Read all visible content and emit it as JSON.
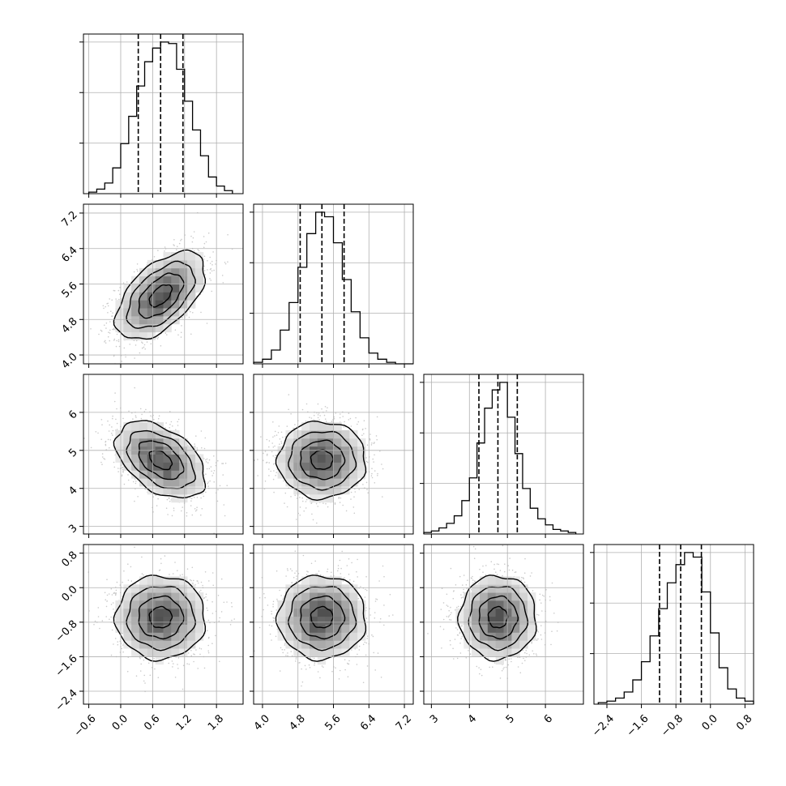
{
  "chart_data": {
    "type": "corner",
    "description_of_kind": "corner plot of 4 parameters: 1D histograms on diagonal with 16/50/84 percentile dashed lines, 2D density + contour panels below diagonal",
    "grid": true,
    "parameters": [
      {
        "index": 0,
        "range": [
          -0.7,
          2.3
        ],
        "ticks": [
          -0.6,
          0.0,
          0.6,
          1.2,
          1.8
        ],
        "tick_labels": [
          "−0.6",
          "0.0",
          "0.6",
          "1.2",
          "1.8"
        ],
        "quantiles": [
          0.33,
          0.75,
          1.17
        ],
        "hist": {
          "edges": [
            -0.6,
            -0.45,
            -0.3,
            -0.15,
            0.0,
            0.15,
            0.3,
            0.45,
            0.6,
            0.75,
            0.9,
            1.05,
            1.2,
            1.35,
            1.5,
            1.65,
            1.8,
            1.95,
            2.1
          ],
          "counts": [
            1,
            3,
            7,
            17,
            33,
            51,
            71,
            87,
            96,
            100,
            99,
            82,
            61,
            42,
            25,
            11,
            5,
            2
          ]
        }
      },
      {
        "index": 1,
        "range": [
          3.8,
          7.4
        ],
        "ticks": [
          4.0,
          4.8,
          5.6,
          6.4,
          7.2
        ],
        "tick_labels": [
          "4.0",
          "4.8",
          "5.6",
          "6.4",
          "7.2"
        ],
        "quantiles": [
          4.85,
          5.34,
          5.84
        ],
        "hist": {
          "edges": [
            3.8,
            4.0,
            4.2,
            4.4,
            4.6,
            4.8,
            5.0,
            5.2,
            5.4,
            5.6,
            5.8,
            6.0,
            6.2,
            6.4,
            6.6,
            6.8,
            7.0,
            7.2,
            7.4
          ],
          "counts": [
            1,
            3,
            9,
            22,
            40,
            63,
            85,
            99,
            96,
            79,
            55,
            34,
            17,
            7,
            3,
            1,
            0,
            0
          ]
        }
      },
      {
        "index": 2,
        "range": [
          2.8,
          7.0
        ],
        "ticks": [
          3,
          4,
          5,
          6
        ],
        "tick_labels": [
          "3",
          "4",
          "5",
          "6"
        ],
        "quantiles": [
          4.25,
          4.75,
          5.26
        ],
        "hist": {
          "edges": [
            2.8,
            3.0,
            3.2,
            3.4,
            3.6,
            3.8,
            4.0,
            4.2,
            4.4,
            4.6,
            4.8,
            5.0,
            5.2,
            5.4,
            5.6,
            5.8,
            6.0,
            6.2,
            6.4,
            6.6,
            6.8
          ],
          "counts": [
            1,
            2,
            4,
            7,
            12,
            22,
            37,
            60,
            83,
            95,
            100,
            77,
            53,
            30,
            17,
            10,
            6,
            3,
            2,
            1
          ]
        }
      },
      {
        "index": 3,
        "range": [
          -2.7,
          1.0
        ],
        "ticks": [
          -2.4,
          -1.6,
          -0.8,
          0.0,
          0.8
        ],
        "tick_labels": [
          "−2.4",
          "−1.6",
          "−0.8",
          "0.0",
          "0.8"
        ],
        "quantiles": [
          -1.18,
          -0.69,
          -0.21
        ],
        "hist": {
          "edges": [
            -2.6,
            -2.4,
            -2.2,
            -2.0,
            -1.8,
            -1.6,
            -1.4,
            -1.2,
            -1.0,
            -0.8,
            -0.6,
            -0.4,
            -0.2,
            0.0,
            0.2,
            0.4,
            0.6,
            0.8,
            1.0
          ],
          "counts": [
            1,
            2,
            4,
            8,
            16,
            28,
            45,
            63,
            80,
            92,
            100,
            97,
            74,
            47,
            24,
            10,
            4,
            2
          ]
        }
      }
    ],
    "pairs": [
      {
        "x": 0,
        "y": 1,
        "correlation": 0.55
      },
      {
        "x": 0,
        "y": 2,
        "correlation": -0.45
      },
      {
        "x": 1,
        "y": 2,
        "correlation": 0.0
      },
      {
        "x": 0,
        "y": 3,
        "correlation": 0.0
      },
      {
        "x": 1,
        "y": 3,
        "correlation": 0.0
      },
      {
        "x": 2,
        "y": 3,
        "correlation": 0.0
      }
    ]
  }
}
